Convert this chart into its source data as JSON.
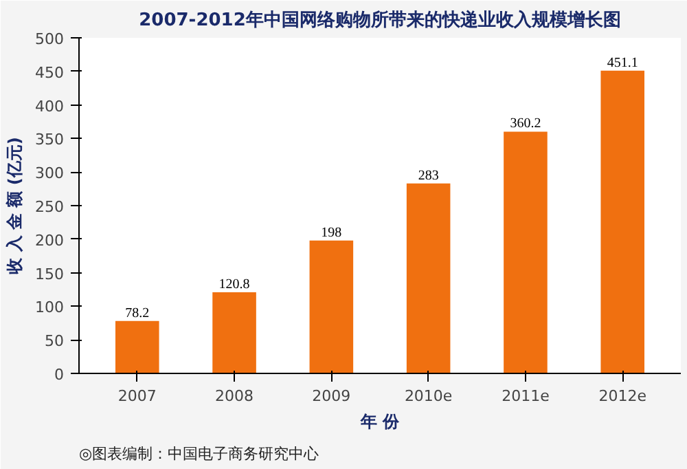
{
  "chart_data": {
    "type": "bar",
    "title": "2007-2012年中国网络购物所带来的快递业收入规模增长图",
    "xlabel": "年 份",
    "ylabel": "收 入 金 额 (亿元)",
    "categories": [
      "2007",
      "2008",
      "2009",
      "2010e",
      "2011e",
      "2012e"
    ],
    "values": [
      78.2,
      120.8,
      198,
      283,
      360.2,
      451.1
    ],
    "color": "#f07010",
    "ylim": [
      0,
      500
    ],
    "yticks": [
      0,
      50,
      100,
      150,
      200,
      250,
      300,
      350,
      400,
      450,
      500
    ],
    "grid": false,
    "data_labels": true,
    "annotations": [
      "◎图表编制：中国电子商务研究中心"
    ]
  }
}
